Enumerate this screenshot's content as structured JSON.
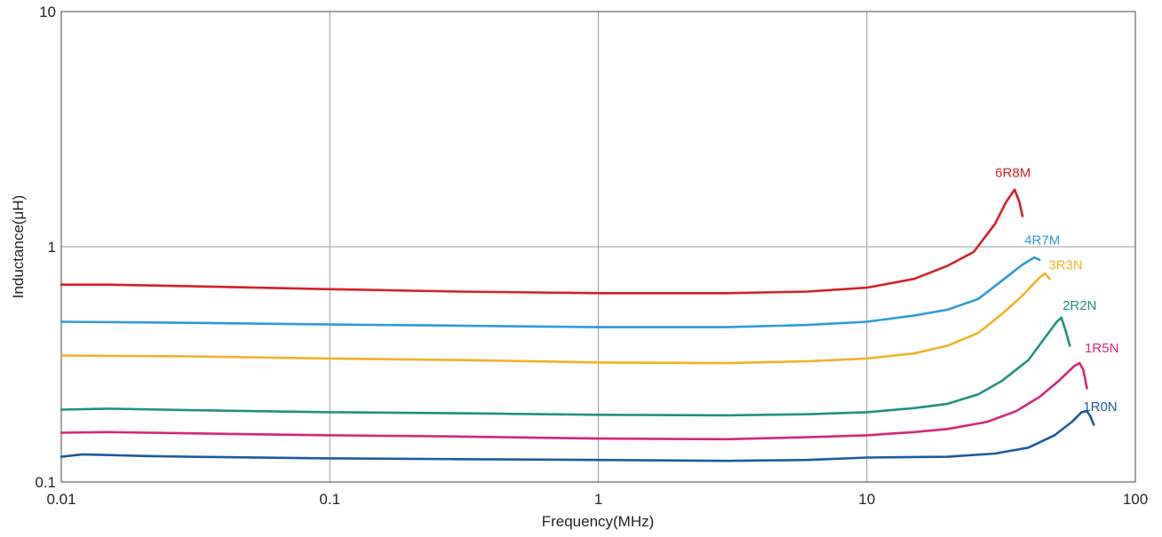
{
  "chart_data": {
    "type": "line",
    "xlabel": "Frequency(MHz)",
    "ylabel": "Inductance(μH)",
    "x_scale": "log",
    "y_scale": "log",
    "xlim": [
      0.01,
      100
    ],
    "ylim": [
      0.1,
      10
    ],
    "grid": true,
    "x_ticks": [
      {
        "value": 0.01,
        "label": "0.01"
      },
      {
        "value": 0.1,
        "label": "0.1"
      },
      {
        "value": 1,
        "label": "1"
      },
      {
        "value": 10,
        "label": "10"
      },
      {
        "value": 100,
        "label": "100"
      }
    ],
    "y_ticks": [
      {
        "value": 0.1,
        "label": "0.1"
      },
      {
        "value": 1,
        "label": "1"
      },
      {
        "value": 10,
        "label": "10"
      }
    ],
    "series": [
      {
        "name": "6R8M",
        "color": "#d42027",
        "points": [
          [
            0.01,
            0.69
          ],
          [
            0.015,
            0.69
          ],
          [
            0.03,
            0.68
          ],
          [
            0.1,
            0.66
          ],
          [
            0.3,
            0.645
          ],
          [
            1,
            0.635
          ],
          [
            3,
            0.635
          ],
          [
            6,
            0.645
          ],
          [
            10,
            0.67
          ],
          [
            15,
            0.73
          ],
          [
            20,
            0.83
          ],
          [
            25,
            0.95
          ],
          [
            30,
            1.25
          ],
          [
            33,
            1.55
          ],
          [
            35.5,
            1.75
          ],
          [
            37,
            1.55
          ],
          [
            38,
            1.35
          ]
        ]
      },
      {
        "name": "4R7M",
        "color": "#2e9bd6",
        "points": [
          [
            0.01,
            0.48
          ],
          [
            0.03,
            0.475
          ],
          [
            0.1,
            0.467
          ],
          [
            0.3,
            0.462
          ],
          [
            1,
            0.455
          ],
          [
            3,
            0.455
          ],
          [
            6,
            0.465
          ],
          [
            10,
            0.48
          ],
          [
            15,
            0.51
          ],
          [
            20,
            0.54
          ],
          [
            26,
            0.6
          ],
          [
            32,
            0.72
          ],
          [
            38,
            0.84
          ],
          [
            42,
            0.9
          ],
          [
            44,
            0.88
          ]
        ]
      },
      {
        "name": "3R3N",
        "color": "#efb321",
        "points": [
          [
            0.01,
            0.345
          ],
          [
            0.03,
            0.342
          ],
          [
            0.1,
            0.335
          ],
          [
            0.3,
            0.33
          ],
          [
            1,
            0.322
          ],
          [
            3,
            0.32
          ],
          [
            6,
            0.326
          ],
          [
            10,
            0.335
          ],
          [
            15,
            0.352
          ],
          [
            20,
            0.38
          ],
          [
            26,
            0.43
          ],
          [
            32,
            0.52
          ],
          [
            38,
            0.62
          ],
          [
            44,
            0.74
          ],
          [
            46,
            0.77
          ],
          [
            48,
            0.73
          ]
        ]
      },
      {
        "name": "2R2N",
        "color": "#1f9180",
        "points": [
          [
            0.01,
            0.203
          ],
          [
            0.015,
            0.205
          ],
          [
            0.03,
            0.202
          ],
          [
            0.1,
            0.198
          ],
          [
            0.3,
            0.196
          ],
          [
            1,
            0.193
          ],
          [
            3,
            0.192
          ],
          [
            6,
            0.194
          ],
          [
            10,
            0.198
          ],
          [
            15,
            0.206
          ],
          [
            20,
            0.215
          ],
          [
            26,
            0.236
          ],
          [
            32,
            0.27
          ],
          [
            40,
            0.33
          ],
          [
            46,
            0.41
          ],
          [
            51,
            0.48
          ],
          [
            53,
            0.5
          ],
          [
            55,
            0.44
          ],
          [
            57,
            0.38
          ]
        ]
      },
      {
        "name": "1R5N",
        "color": "#d6247c",
        "points": [
          [
            0.01,
            0.162
          ],
          [
            0.015,
            0.163
          ],
          [
            0.03,
            0.161
          ],
          [
            0.1,
            0.158
          ],
          [
            0.3,
            0.156
          ],
          [
            1,
            0.153
          ],
          [
            3,
            0.152
          ],
          [
            6,
            0.155
          ],
          [
            10,
            0.158
          ],
          [
            15,
            0.163
          ],
          [
            20,
            0.168
          ],
          [
            28,
            0.18
          ],
          [
            36,
            0.2
          ],
          [
            44,
            0.23
          ],
          [
            52,
            0.27
          ],
          [
            59,
            0.31
          ],
          [
            62,
            0.32
          ],
          [
            64,
            0.3
          ],
          [
            66,
            0.25
          ]
        ]
      },
      {
        "name": "1R0N",
        "color": "#1a5c9c",
        "points": [
          [
            0.01,
            0.128
          ],
          [
            0.012,
            0.131
          ],
          [
            0.02,
            0.129
          ],
          [
            0.03,
            0.128
          ],
          [
            0.1,
            0.126
          ],
          [
            0.3,
            0.125
          ],
          [
            1,
            0.124
          ],
          [
            3,
            0.123
          ],
          [
            6,
            0.124
          ],
          [
            10,
            0.127
          ],
          [
            20,
            0.128
          ],
          [
            30,
            0.132
          ],
          [
            40,
            0.14
          ],
          [
            50,
            0.158
          ],
          [
            58,
            0.18
          ],
          [
            63,
            0.198
          ],
          [
            66,
            0.2
          ],
          [
            68,
            0.19
          ],
          [
            70,
            0.175
          ]
        ]
      }
    ],
    "annotations": [
      {
        "text": "6R8M",
        "x": 35,
        "y": 1.98,
        "color": "#d42027"
      },
      {
        "text": "4R7M",
        "x": 45,
        "y": 1.02,
        "color": "#2e9bd6"
      },
      {
        "text": "3R3N",
        "x": 55,
        "y": 0.8,
        "color": "#efb321"
      },
      {
        "text": "2R2N",
        "x": 62,
        "y": 0.54,
        "color": "#1f9180"
      },
      {
        "text": "1R5N",
        "x": 75,
        "y": 0.355,
        "color": "#d6247c"
      },
      {
        "text": "1R0N",
        "x": 74,
        "y": 0.2,
        "color": "#1a5c9c"
      }
    ]
  }
}
